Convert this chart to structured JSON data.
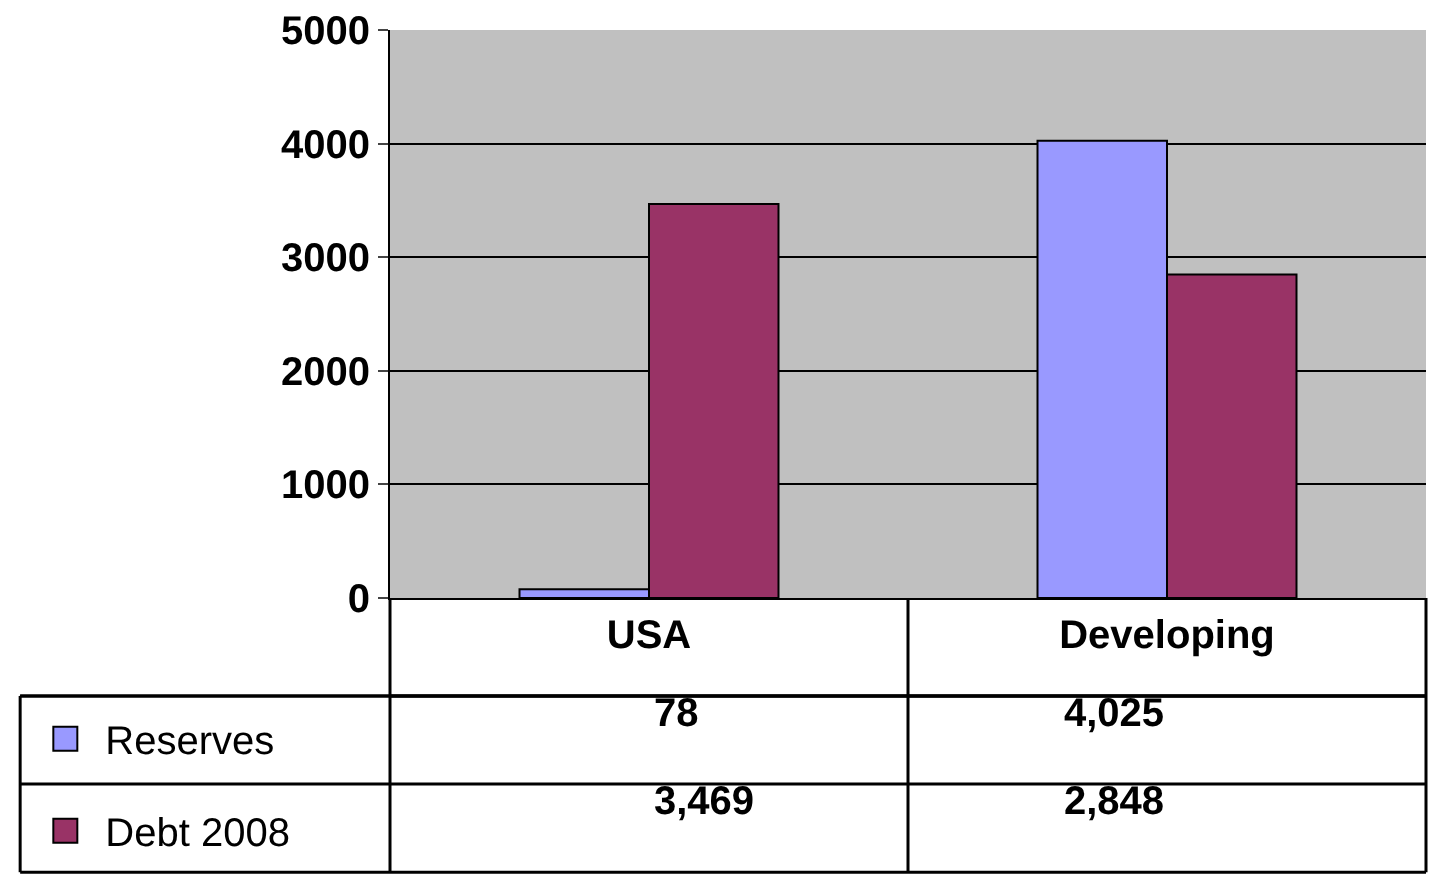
{
  "chart_data": {
    "type": "bar",
    "categories": [
      "USA",
      "Developing"
    ],
    "series": [
      {
        "name": "Reserves",
        "color": "#9999ff",
        "values": [
          78,
          4025
        ],
        "value_labels": [
          "78",
          "4,025"
        ]
      },
      {
        "name": "Debt 2008",
        "color": "#993366",
        "values": [
          3469,
          2848
        ],
        "value_labels": [
          "3,469",
          "2,848"
        ]
      }
    ],
    "ylim": [
      0,
      5000
    ],
    "yticks": [
      0,
      1000,
      2000,
      3000,
      4000,
      5000
    ],
    "grid": "y",
    "legend": "bottom left"
  }
}
